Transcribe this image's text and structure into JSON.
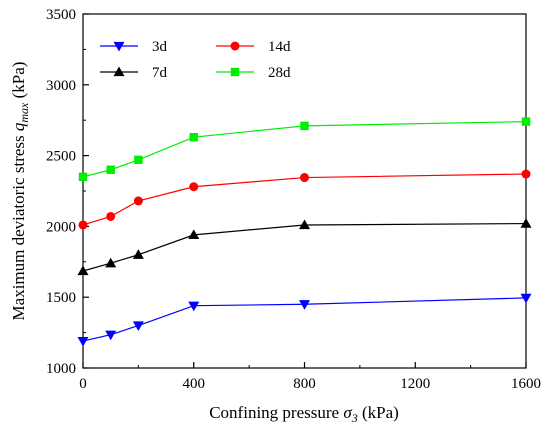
{
  "chart_data": {
    "type": "line",
    "x": [
      0,
      100,
      200,
      400,
      800,
      1600
    ],
    "x_tick_values": [
      0,
      400,
      800,
      1200,
      1600
    ],
    "x_tick_labels": [
      "0",
      "400",
      "800",
      "1200",
      "1600"
    ],
    "xlabel": {
      "text": "Confining pressure ",
      "symbol": "σ",
      "subscript": "3",
      "unit": " (kPa)"
    },
    "ylabel": {
      "text": "Maximum deviatoric stress ",
      "symbol": "q",
      "subscript": "max",
      "unit": " (kPa)"
    },
    "y_tick_values": [
      1000,
      1500,
      2000,
      2500,
      3000,
      3500
    ],
    "ylim": [
      1000,
      3500
    ],
    "grid": false,
    "legend_placement": "top-left",
    "series": [
      {
        "name": "3d",
        "color": "#0000ff",
        "marker": "triangle-down",
        "values": [
          1190,
          1235,
          1300,
          1440,
          1450,
          1495
        ]
      },
      {
        "name": "7d",
        "color": "#000000",
        "marker": "triangle-up",
        "values": [
          1685,
          1740,
          1800,
          1940,
          2010,
          2020
        ]
      },
      {
        "name": "14d",
        "color": "#ff0000",
        "marker": "circle",
        "values": [
          2010,
          2070,
          2180,
          2280,
          2345,
          2370
        ]
      },
      {
        "name": "28d",
        "color": "#00ee00",
        "marker": "square",
        "values": [
          2350,
          2400,
          2470,
          2630,
          2710,
          2740
        ]
      }
    ]
  }
}
